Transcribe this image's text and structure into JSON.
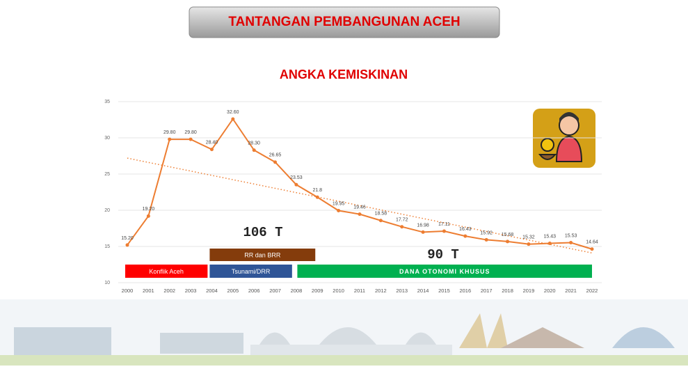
{
  "header": {
    "title": "TANTANGAN PEMBANGUNAN ACEH"
  },
  "chart_data": {
    "type": "line",
    "title": "ANGKA KEMISKINAN",
    "x": [
      2000,
      2001,
      2002,
      2003,
      2004,
      2005,
      2006,
      2007,
      2008,
      2009,
      2010,
      2011,
      2012,
      2013,
      2014,
      2015,
      2016,
      2017,
      2018,
      2019,
      2020,
      2021,
      2022
    ],
    "xlim": [
      2000,
      2022
    ],
    "series": [
      {
        "color": "#ed7d31",
        "values": [
          15.2,
          19.2,
          29.8,
          29.8,
          28.4,
          32.6,
          28.3,
          26.65,
          23.53,
          21.8,
          19.95,
          19.46,
          18.58,
          17.72,
          16.98,
          17.11,
          16.43,
          15.92,
          15.68,
          15.32,
          15.43,
          15.53,
          14.64
        ],
        "value_labels": [
          "15.20",
          "19.20",
          "29.80",
          "29.80",
          "28.40",
          "32.60",
          "28.30",
          "26.65",
          "23.53",
          "21.8",
          "19.95",
          "19.46",
          "18.58",
          "17.72",
          "16.98",
          "17.11",
          "16.43",
          "15.92",
          "15.68",
          "15.32",
          "15.43",
          "15.53",
          "14.64"
        ]
      }
    ],
    "trendline": {
      "color": "#ed7d31",
      "values": [
        27.2,
        14.1
      ]
    },
    "ylim": [
      10,
      35
    ],
    "yticks": [
      10,
      15,
      20,
      25,
      30,
      35
    ],
    "grid": true,
    "periods": [
      {
        "label": "Konflik Aceh",
        "start": 1999.9,
        "end": 2003.8,
        "color": "#ff0000",
        "row": 0
      },
      {
        "label": "Tsunami/DRR",
        "start": 2003.9,
        "end": 2007.8,
        "color": "#2f5597",
        "row": 0
      },
      {
        "label": "RR dan BRR",
        "start": 2003.9,
        "end": 2008.9,
        "color": "#843c0c",
        "row": 1
      },
      {
        "label": "DANA OTONOMI KHUSUS",
        "start": 2008.05,
        "end": 2022,
        "color": "#00b050",
        "row": 0
      }
    ],
    "annotations": [
      "106 T",
      "90 T"
    ]
  }
}
